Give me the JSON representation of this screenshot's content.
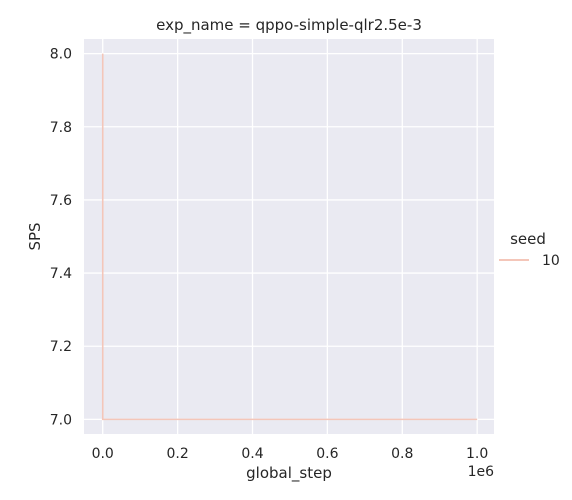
{
  "chart_data": {
    "type": "line",
    "title": "exp_name = qppo-simple-qlr2.5e-3",
    "xlabel": "global_step",
    "ylabel": "SPS",
    "x_offset_label": "1e6",
    "xlim": [
      -0.05,
      1.045
    ],
    "ylim": [
      6.96,
      8.04
    ],
    "xticks": [
      0.0,
      0.2,
      0.4,
      0.6,
      0.8,
      1.0
    ],
    "xtick_labels": [
      "0.0",
      "0.2",
      "0.4",
      "0.6",
      "0.8",
      "1.0"
    ],
    "yticks": [
      7.0,
      7.2,
      7.4,
      7.6,
      7.8,
      8.0
    ],
    "ytick_labels": [
      "7.0",
      "7.2",
      "7.4",
      "7.6",
      "7.8",
      "8.0"
    ],
    "grid": true,
    "legend": {
      "title": "seed",
      "placement": "right"
    },
    "series": [
      {
        "name": "10",
        "color": "#f4c6b9",
        "x": [
          0.0,
          0.0,
          0.003,
          1.0
        ],
        "y": [
          8.0,
          7.0,
          7.0,
          7.0
        ]
      }
    ]
  }
}
